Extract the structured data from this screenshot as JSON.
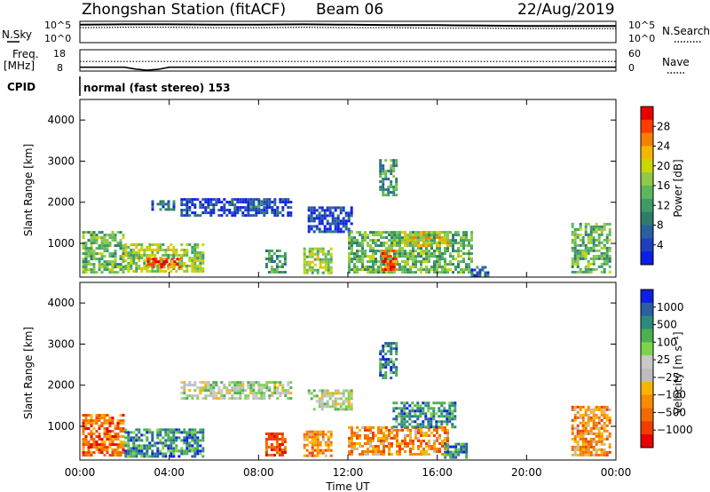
{
  "header": {
    "station_title": "Zhongshan Station (fitACF)",
    "beam_title": "Beam 06",
    "date_title": "22/Aug/2019"
  },
  "chart_data": [
    {
      "type": "line",
      "panel": "noise",
      "left_label": "N.Sky",
      "right_label": "N.Search",
      "left_ticks": [
        "10^5",
        "10^0"
      ],
      "right_ticks": [
        "10^5",
        "10^0"
      ],
      "x": [
        0,
        2,
        4,
        6,
        8,
        10,
        12,
        14,
        16,
        18,
        20,
        22,
        24
      ],
      "series": [
        {
          "values": [
            4.2,
            4.3,
            4.3,
            4.2,
            4.2,
            4.3,
            4.2,
            4.1,
            4.1,
            4.0,
            3.9,
            3.9,
            3.9
          ]
        },
        {
          "values": [
            3.5,
            3.6,
            3.6,
            3.5,
            3.5,
            3.6,
            3.5,
            3.5,
            3.4,
            3.4,
            3.3,
            3.3,
            3.3
          ]
        }
      ]
    },
    {
      "type": "line",
      "panel": "frequency",
      "left_label_line1": "Freq.",
      "left_label_line2": "[MHz]",
      "left_ticks": [
        "18",
        "8"
      ],
      "right_label": "Nave",
      "right_ticks": [
        "60",
        "0"
      ],
      "cpid_label": "CPID",
      "cpid_text": "normal (fast stereo) 153",
      "x": [
        0,
        2,
        2.5,
        3,
        3.5,
        4,
        6,
        8,
        10,
        12,
        14,
        16,
        18,
        20,
        22,
        24
      ],
      "series": [
        {
          "values": [
            12.5,
            12.5,
            12.5,
            12.5,
            12.5,
            12.5,
            12.5,
            12.5,
            12.5,
            12.5,
            12.5,
            12.5,
            12.5,
            12.5,
            12.5,
            12.5
          ]
        },
        {
          "values": [
            9.8,
            9.8,
            8.9,
            8.4,
            8.8,
            9.8,
            9.8,
            9.8,
            9.8,
            9.8,
            9.8,
            9.8,
            9.8,
            9.8,
            9.8,
            9.8
          ]
        }
      ]
    },
    {
      "type": "heatmap",
      "panel": "power",
      "ylabel": "Slant Range [km]",
      "yticks": [
        1000,
        2000,
        3000,
        4000
      ],
      "ylim": [
        180,
        4500
      ],
      "xlim": [
        0,
        24
      ],
      "colorbar_label": "Power [dB]",
      "colorbar_ticks": [
        "28",
        "24",
        "20",
        "16",
        "12",
        "8",
        "4"
      ],
      "colorbar_colors": [
        "#e60000",
        "#ff3b00",
        "#f77f00",
        "#f2b800",
        "#c9d600",
        "#8fc84a",
        "#5cb85c",
        "#3e9b68",
        "#2e7d6a",
        "#2a5fa0",
        "#1e3fbf",
        "#0b1fe6"
      ],
      "regions": [
        {
          "t0": 0.1,
          "t1": 2.0,
          "r0": 300,
          "r1": 1300,
          "level": 5
        },
        {
          "t0": 2.0,
          "t1": 5.5,
          "r0": 300,
          "r1": 1000,
          "level": 6
        },
        {
          "t0": 3.0,
          "t1": 4.5,
          "r0": 450,
          "r1": 650,
          "level": 10
        },
        {
          "t0": 4.5,
          "t1": 9.5,
          "r0": 1650,
          "r1": 2100,
          "level": 1
        },
        {
          "t0": 3.2,
          "t1": 4.2,
          "r0": 1850,
          "r1": 2050,
          "level": 2
        },
        {
          "t0": 7.6,
          "t1": 8.3,
          "r0": 1850,
          "r1": 2050,
          "level": 3
        },
        {
          "t0": 10.2,
          "t1": 12.2,
          "r0": 1300,
          "r1": 1900,
          "level": 1
        },
        {
          "t0": 12.0,
          "t1": 17.5,
          "r0": 300,
          "r1": 1300,
          "level": 5
        },
        {
          "t0": 13.5,
          "t1": 14.2,
          "r0": 350,
          "r1": 850,
          "level": 10
        },
        {
          "t0": 14.5,
          "t1": 16.5,
          "r0": 950,
          "r1": 1300,
          "level": 7
        },
        {
          "t0": 8.3,
          "t1": 9.2,
          "r0": 300,
          "r1": 850,
          "level": 4
        },
        {
          "t0": 10.0,
          "t1": 11.3,
          "r0": 300,
          "r1": 900,
          "level": 6
        },
        {
          "t0": 13.4,
          "t1": 14.2,
          "r0": 2200,
          "r1": 3050,
          "level": 4
        },
        {
          "t0": 22.0,
          "t1": 23.7,
          "r0": 300,
          "r1": 1500,
          "level": 5
        },
        {
          "t0": 17.5,
          "t1": 18.3,
          "r0": 250,
          "r1": 450,
          "level": 2
        }
      ]
    },
    {
      "type": "heatmap",
      "panel": "velocity",
      "ylabel": "Slant Range [km]",
      "yticks": [
        1000,
        2000,
        3000,
        4000
      ],
      "ylim": [
        180,
        4500
      ],
      "xlim": [
        0,
        24
      ],
      "xlabel": "Time UT",
      "xticks": [
        "00:00",
        "04:00",
        "08:00",
        "12:00",
        "16:00",
        "20:00",
        "00:00"
      ],
      "colorbar_label": "Velocity [m s⁻¹]",
      "colorbar_ticks": [
        "1000",
        "500",
        "100",
        "25",
        "−25",
        "−100",
        "−500",
        "−1000"
      ],
      "colorbar_colors": [
        "#0b1fe6",
        "#2a5fa0",
        "#2e8b7a",
        "#4caf50",
        "#7fd34b",
        "#c8c8c8",
        "#bdbdbd",
        "#f7b500",
        "#f78c00",
        "#f26a00",
        "#f03c00",
        "#e60000"
      ],
      "regions": [
        {
          "t0": 0.1,
          "t1": 2.0,
          "r0": 300,
          "r1": 1300,
          "level": 2
        },
        {
          "t0": 2.0,
          "t1": 5.5,
          "r0": 300,
          "r1": 950,
          "level": 9
        },
        {
          "t0": 4.5,
          "t1": 9.5,
          "r0": 1700,
          "r1": 2100,
          "level": 6
        },
        {
          "t0": 10.2,
          "t1": 12.2,
          "r0": 1400,
          "r1": 1900,
          "level": 6
        },
        {
          "t0": 12.0,
          "t1": 16.5,
          "r0": 350,
          "r1": 1000,
          "level": 3
        },
        {
          "t0": 14.0,
          "t1": 16.8,
          "r0": 1000,
          "r1": 1600,
          "level": 9
        },
        {
          "t0": 16.3,
          "t1": 17.3,
          "r0": 250,
          "r1": 600,
          "level": 9
        },
        {
          "t0": 8.3,
          "t1": 9.2,
          "r0": 300,
          "r1": 850,
          "level": 1
        },
        {
          "t0": 10.0,
          "t1": 11.3,
          "r0": 300,
          "r1": 900,
          "level": 3
        },
        {
          "t0": 13.4,
          "t1": 14.2,
          "r0": 2200,
          "r1": 3050,
          "level": 9
        },
        {
          "t0": 22.0,
          "t1": 23.7,
          "r0": 300,
          "r1": 1500,
          "level": 3
        }
      ]
    }
  ]
}
